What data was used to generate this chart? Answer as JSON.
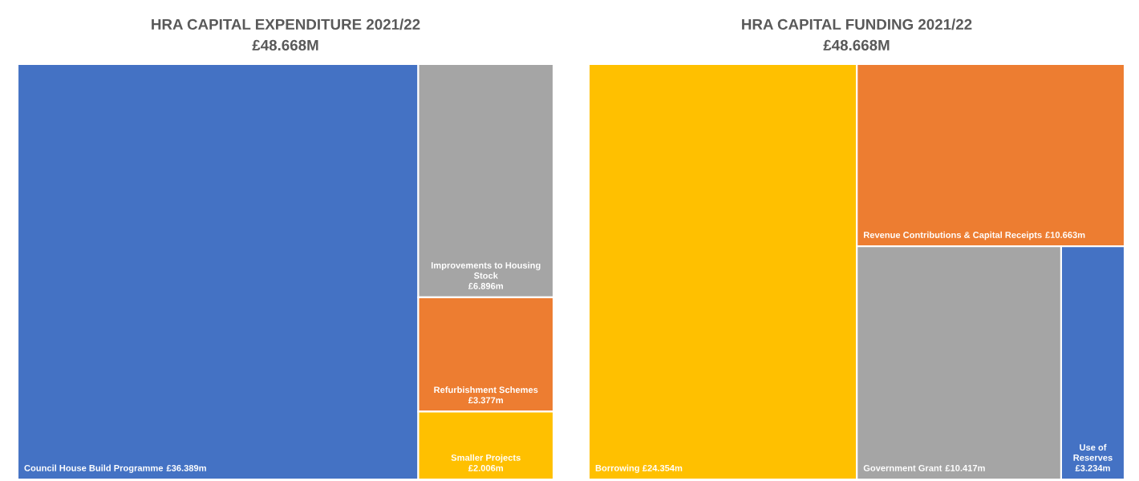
{
  "chart_data": [
    {
      "type": "other",
      "title": "HRA CAPITAL EXPENDITURE 2021/22",
      "subtitle": "£48.668M",
      "categories": [
        "Council House Build Programme",
        "Improvements to Housing Stock",
        "Refurbishment Schemes",
        "Smaller Projects"
      ],
      "values": [
        36.389,
        6.896,
        3.377,
        2.006
      ],
      "value_labels": [
        "£36.389m",
        "£6.896m",
        "£3.377m",
        "£2.006m"
      ],
      "colors": [
        "#4472c4",
        "#a5a5a5",
        "#ed7d31",
        "#ffc000"
      ]
    },
    {
      "type": "other",
      "title": "HRA CAPITAL FUNDING 2021/22",
      "subtitle": "£48.668M",
      "categories": [
        "Borrowing",
        "Revenue Contributions & Capital Receipts",
        "Government Grant",
        "Use of Reserves"
      ],
      "values": [
        24.354,
        10.663,
        10.417,
        3.234
      ],
      "value_labels": [
        "£24.354m",
        "£10.663m",
        "£10.417m",
        "£3.234m"
      ],
      "colors": [
        "#ffc000",
        "#ed7d31",
        "#a5a5a5",
        "#4472c4"
      ]
    }
  ]
}
